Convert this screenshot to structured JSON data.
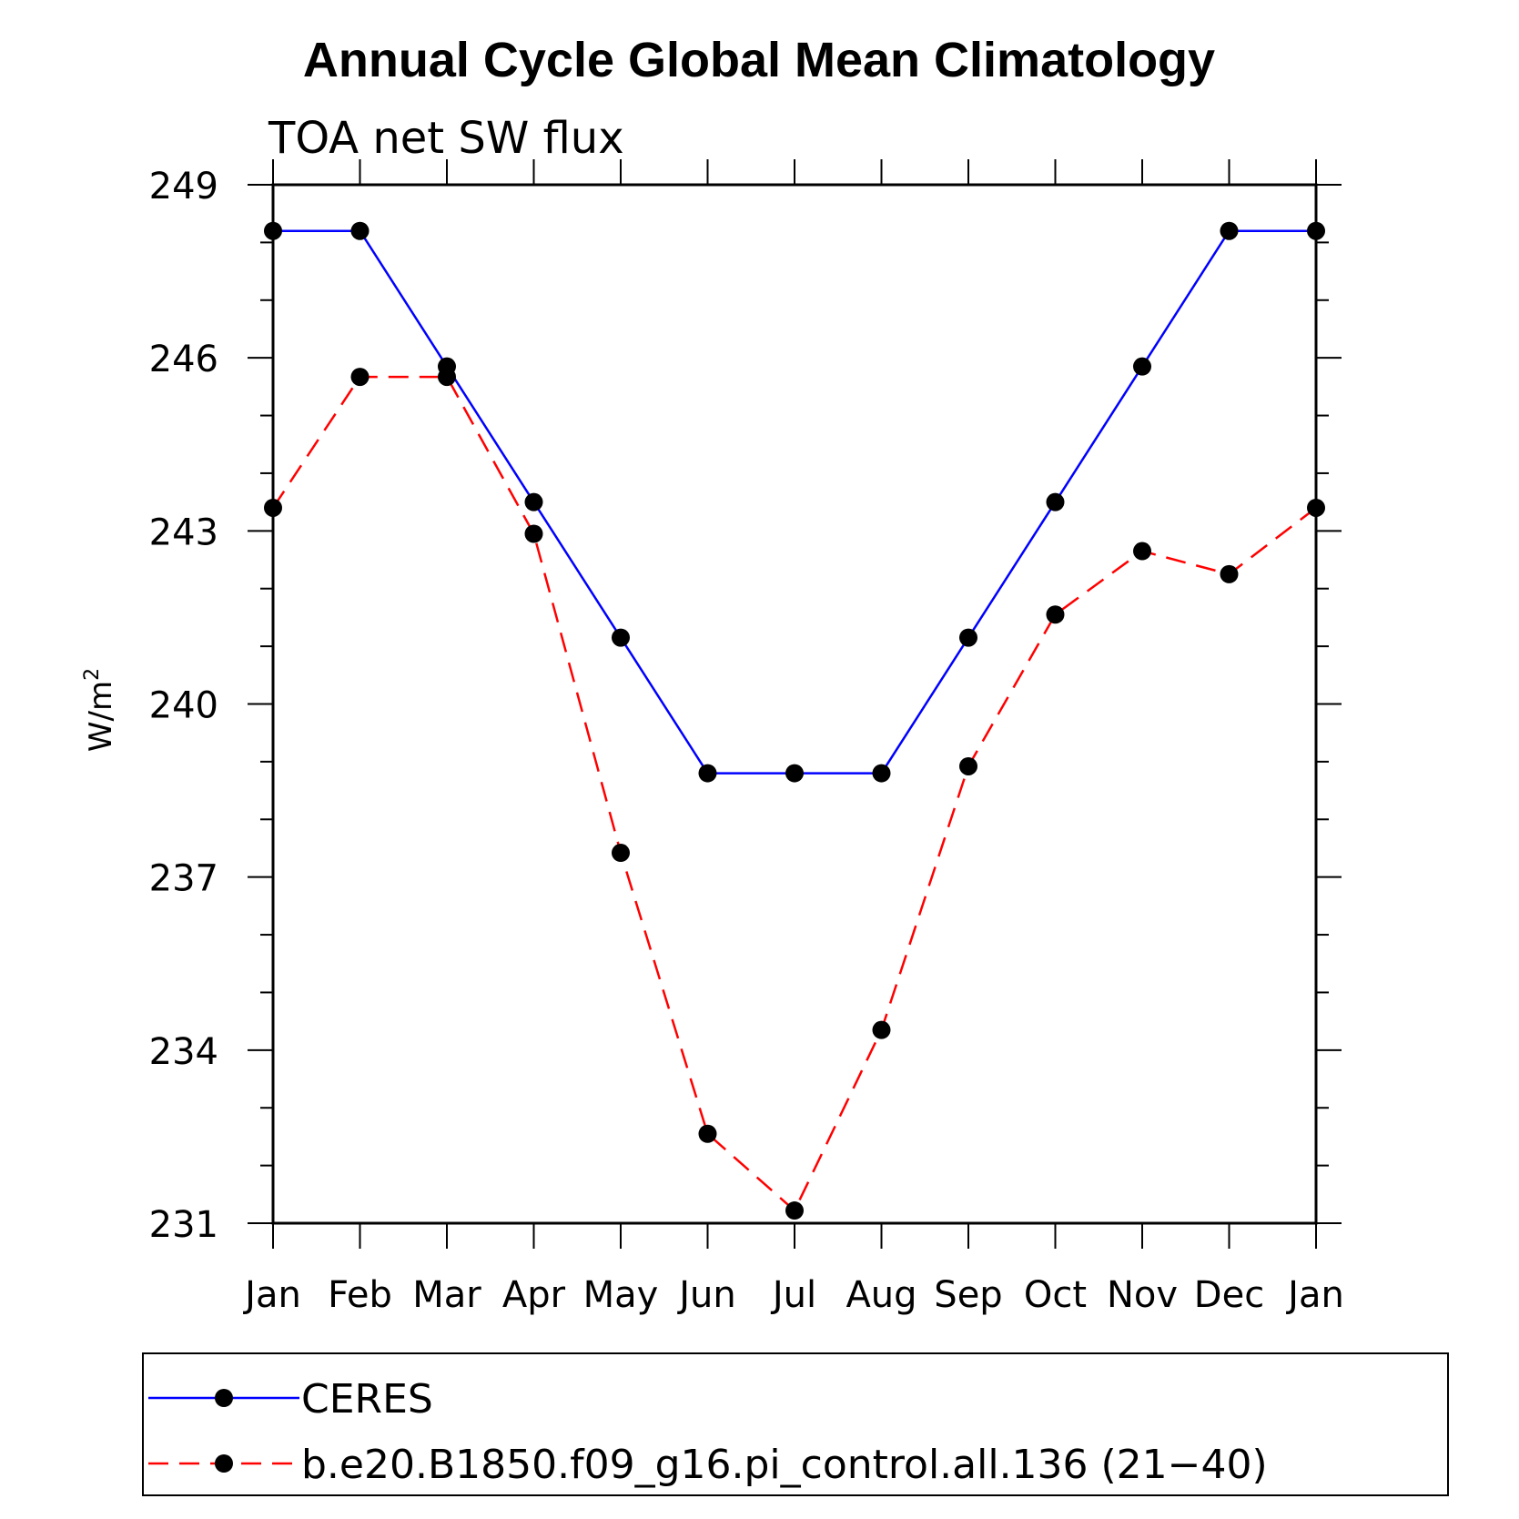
{
  "chart_data": {
    "type": "line",
    "title": "Annual Cycle Global Mean Climatology",
    "subtitle": "TOA net SW flux",
    "ylabel": "W/m",
    "ylabel_superscript": "2",
    "xlabel": "",
    "categories": [
      "Jan",
      "Feb",
      "Mar",
      "Apr",
      "May",
      "Jun",
      "Jul",
      "Aug",
      "Sep",
      "Oct",
      "Nov",
      "Dec",
      "Jan"
    ],
    "yticks": [
      231,
      234,
      237,
      240,
      243,
      246,
      249
    ],
    "ylim": [
      231,
      249
    ],
    "grid": false,
    "legend_position": "bottom",
    "series": [
      {
        "name": "CERES",
        "color": "#0000ff",
        "dashed": false,
        "values": [
          248.2,
          248.2,
          245.85,
          243.5,
          241.15,
          238.8,
          238.8,
          238.8,
          241.15,
          243.5,
          245.85,
          248.2,
          248.2
        ]
      },
      {
        "name": "b.e20.B1850.f09_g16.pi_control.all.136 (21−40)",
        "color": "#ff0000",
        "dashed": true,
        "values": [
          243.4,
          245.67,
          245.67,
          242.95,
          237.42,
          232.55,
          231.22,
          234.35,
          238.92,
          241.55,
          242.65,
          242.25,
          243.4
        ]
      }
    ]
  }
}
